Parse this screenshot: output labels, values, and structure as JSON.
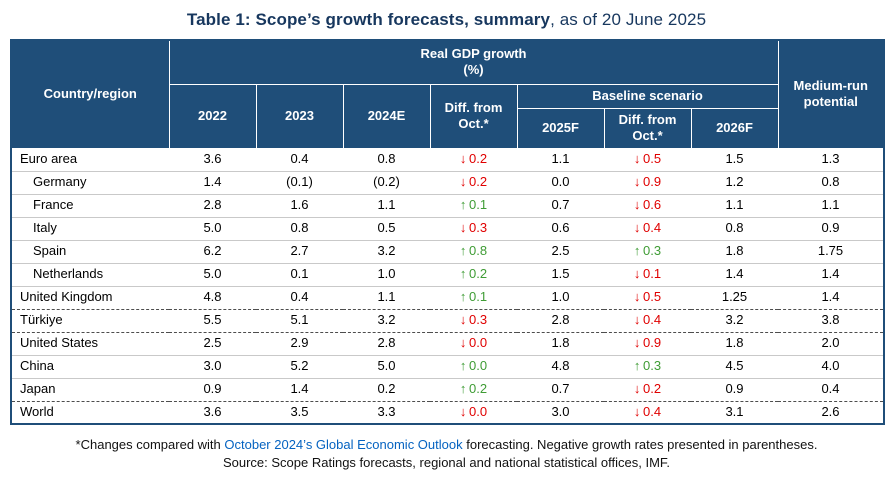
{
  "colors": {
    "header_navy": "#1F4E79",
    "title_navy": "#17375E",
    "negative_red": "#E00000",
    "positive_green": "#3F9C35",
    "link_blue": "#0563C1",
    "row_line": "#C9C9C9"
  },
  "title": {
    "bold": "Table 1: Scope’s growth forecasts, summary",
    "suffix": ", as of 20 June 2025"
  },
  "header": {
    "country_region": "Country/region",
    "real_gdp_line1": "Real GDP growth",
    "real_gdp_line2": "(%)",
    "baseline_scenario": "Baseline scenario",
    "y2022": "2022",
    "y2023": "2023",
    "y2024e": "2024E",
    "diff_from_oct": "Diff. from Oct.*",
    "y2025f": "2025F",
    "y2026f": "2026F",
    "medium_run": "Medium-run potential"
  },
  "icons": {
    "arrow_down": "↓",
    "arrow_up": "↑"
  },
  "rows": [
    {
      "name": "Euro area",
      "indent": false,
      "sep_above": "none",
      "cells": [
        {
          "v": "3.6"
        },
        {
          "v": "0.4"
        },
        {
          "v": "0.8"
        },
        {
          "v": "0.2",
          "dir": "down"
        },
        {
          "v": "1.1"
        },
        {
          "v": "0.5",
          "dir": "down"
        },
        {
          "v": "1.5"
        },
        {
          "v": "1.3"
        }
      ]
    },
    {
      "name": "Germany",
      "indent": true,
      "sep_above": "line",
      "cells": [
        {
          "v": "1.4"
        },
        {
          "v": "(0.1)"
        },
        {
          "v": "(0.2)"
        },
        {
          "v": "0.2",
          "dir": "down"
        },
        {
          "v": "0.0"
        },
        {
          "v": "0.9",
          "dir": "down"
        },
        {
          "v": "1.2"
        },
        {
          "v": "0.8"
        }
      ]
    },
    {
      "name": "France",
      "indent": true,
      "sep_above": "line",
      "cells": [
        {
          "v": "2.8"
        },
        {
          "v": "1.6"
        },
        {
          "v": "1.1"
        },
        {
          "v": "0.1",
          "dir": "up"
        },
        {
          "v": "0.7"
        },
        {
          "v": "0.6",
          "dir": "down"
        },
        {
          "v": "1.1"
        },
        {
          "v": "1.1"
        }
      ]
    },
    {
      "name": "Italy",
      "indent": true,
      "sep_above": "line",
      "cells": [
        {
          "v": "5.0"
        },
        {
          "v": "0.8"
        },
        {
          "v": "0.5"
        },
        {
          "v": "0.3",
          "dir": "down"
        },
        {
          "v": "0.6"
        },
        {
          "v": "0.4",
          "dir": "down"
        },
        {
          "v": "0.8"
        },
        {
          "v": "0.9"
        }
      ]
    },
    {
      "name": "Spain",
      "indent": true,
      "sep_above": "line",
      "cells": [
        {
          "v": "6.2"
        },
        {
          "v": "2.7"
        },
        {
          "v": "3.2"
        },
        {
          "v": "0.8",
          "dir": "up"
        },
        {
          "v": "2.5"
        },
        {
          "v": "0.3",
          "dir": "up"
        },
        {
          "v": "1.8"
        },
        {
          "v": "1.75"
        }
      ]
    },
    {
      "name": "Netherlands",
      "indent": true,
      "sep_above": "line",
      "cells": [
        {
          "v": "5.0"
        },
        {
          "v": "0.1"
        },
        {
          "v": "1.0"
        },
        {
          "v": "0.2",
          "dir": "up"
        },
        {
          "v": "1.5"
        },
        {
          "v": "0.1",
          "dir": "down"
        },
        {
          "v": "1.4"
        },
        {
          "v": "1.4"
        }
      ]
    },
    {
      "name": "United Kingdom",
      "indent": false,
      "sep_above": "line",
      "cells": [
        {
          "v": "4.8"
        },
        {
          "v": "0.4"
        },
        {
          "v": "1.1"
        },
        {
          "v": "0.1",
          "dir": "up"
        },
        {
          "v": "1.0"
        },
        {
          "v": "0.5",
          "dir": "down"
        },
        {
          "v": "1.25"
        },
        {
          "v": "1.4"
        }
      ]
    },
    {
      "name": "Türkiye",
      "indent": false,
      "sep_above": "dashed",
      "cells": [
        {
          "v": "5.5"
        },
        {
          "v": "5.1"
        },
        {
          "v": "3.2"
        },
        {
          "v": "0.3",
          "dir": "down"
        },
        {
          "v": "2.8"
        },
        {
          "v": "0.4",
          "dir": "down"
        },
        {
          "v": "3.2"
        },
        {
          "v": "3.8"
        }
      ]
    },
    {
      "name": "United States",
      "indent": false,
      "sep_above": "dashed",
      "cells": [
        {
          "v": "2.5"
        },
        {
          "v": "2.9"
        },
        {
          "v": "2.8"
        },
        {
          "v": "0.0",
          "dir": "down"
        },
        {
          "v": "1.8"
        },
        {
          "v": "0.9",
          "dir": "down"
        },
        {
          "v": "1.8"
        },
        {
          "v": "2.0"
        }
      ]
    },
    {
      "name": "China",
      "indent": false,
      "sep_above": "line",
      "cells": [
        {
          "v": "3.0"
        },
        {
          "v": "5.2"
        },
        {
          "v": "5.0"
        },
        {
          "v": "0.0",
          "dir": "up"
        },
        {
          "v": "4.8"
        },
        {
          "v": "0.3",
          "dir": "up"
        },
        {
          "v": "4.5"
        },
        {
          "v": "4.0"
        }
      ]
    },
    {
      "name": "Japan",
      "indent": false,
      "sep_above": "line",
      "cells": [
        {
          "v": "0.9"
        },
        {
          "v": "1.4"
        },
        {
          "v": "0.2"
        },
        {
          "v": "0.2",
          "dir": "up"
        },
        {
          "v": "0.7"
        },
        {
          "v": "0.2",
          "dir": "down"
        },
        {
          "v": "0.9"
        },
        {
          "v": "0.4"
        }
      ]
    },
    {
      "name": "World",
      "indent": false,
      "sep_above": "dashed",
      "cells": [
        {
          "v": "3.6"
        },
        {
          "v": "3.5"
        },
        {
          "v": "3.3"
        },
        {
          "v": "0.0",
          "dir": "down"
        },
        {
          "v": "3.0"
        },
        {
          "v": "0.4",
          "dir": "down"
        },
        {
          "v": "3.1"
        },
        {
          "v": "2.6"
        }
      ]
    }
  ],
  "footnotes": {
    "note_prefix": "*Changes compared with ",
    "note_link": "October 2024’s Global Economic Outlook",
    "note_suffix": " forecasting. Negative growth rates presented in parentheses.",
    "source": "Source: Scope Ratings forecasts, regional and national statistical offices, IMF."
  }
}
